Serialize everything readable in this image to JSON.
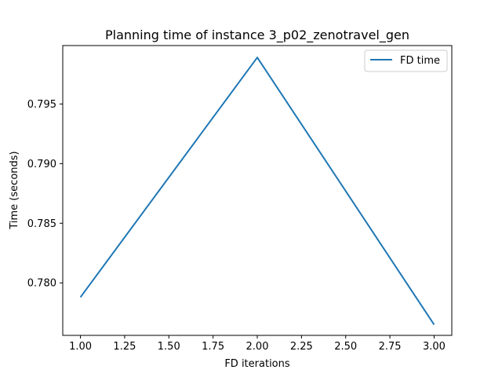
{
  "chart_data": {
    "type": "line",
    "title": "Planning time of instance 3_p02_zenotravel_gen",
    "xlabel": "FD iterations",
    "ylabel": "Time (seconds)",
    "xlim": [
      0.9,
      3.1
    ],
    "ylim": [
      0.7756,
      0.7999
    ],
    "xticks": [
      1.0,
      1.25,
      1.5,
      1.75,
      2.0,
      2.25,
      2.5,
      2.75,
      3.0
    ],
    "xtick_labels": [
      "1.00",
      "1.25",
      "1.50",
      "1.75",
      "2.00",
      "2.25",
      "2.50",
      "2.75",
      "3.00"
    ],
    "yticks": [
      0.78,
      0.785,
      0.79,
      0.795
    ],
    "ytick_labels": [
      "0.780",
      "0.785",
      "0.790",
      "0.795"
    ],
    "grid": false,
    "legend_position": "top-right",
    "series": [
      {
        "name": "FD time",
        "color": "#1f77b4",
        "x": [
          1.0,
          2.0,
          3.0
        ],
        "y": [
          0.7788,
          0.7989,
          0.7765
        ]
      }
    ]
  }
}
